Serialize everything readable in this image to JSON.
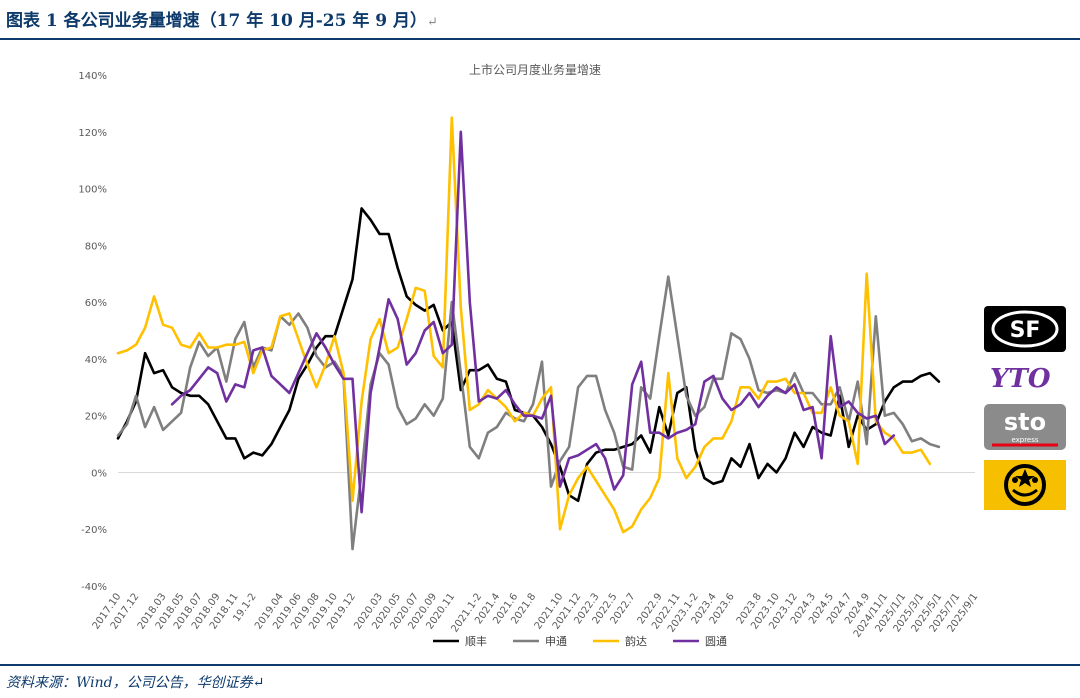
{
  "report_title": "图表 1 各公司业务量增速（17 年 10 月-25 年 9 月）",
  "para_mark": "↵",
  "source": "资料来源：Wind，公司公告，华创证券↵",
  "logos": [
    {
      "name": "sf-express-logo",
      "text": "SF"
    },
    {
      "name": "yto-logo",
      "text": "YTO"
    },
    {
      "name": "sto-logo",
      "text": "sto",
      "subtext": "express"
    },
    {
      "name": "yunda-logo",
      "text": ""
    }
  ],
  "colors": {
    "sf": "#000000",
    "sto": "#7f7f7f",
    "yunda": "#ffc000",
    "yto": "#7030a0",
    "title_blue": "#0d3a6b",
    "axis_text": "#595959",
    "grid": "#d9d9d9"
  },
  "chart_data": {
    "type": "line",
    "title": "上市公司月度业务量增速",
    "xlabel": "",
    "ylabel": "",
    "ylim": [
      -40,
      140
    ],
    "yticks": [
      -40,
      -20,
      0,
      20,
      40,
      60,
      80,
      100,
      120,
      140
    ],
    "ytick_labels": [
      "-40%",
      "-20%",
      "0%",
      "20%",
      "40%",
      "60%",
      "80%",
      "100%",
      "120%",
      "140%"
    ],
    "x_count": 96,
    "x_tick_positions": [
      0,
      2,
      5,
      7,
      9,
      11,
      13,
      15,
      18,
      20,
      22,
      24,
      26,
      29,
      31,
      33,
      35,
      37,
      40,
      42,
      44,
      46,
      49,
      51,
      53,
      55,
      57,
      60,
      62,
      64,
      66,
      68,
      71,
      73,
      75,
      77,
      79,
      81,
      83,
      85,
      87,
      89,
      91,
      93,
      95
    ],
    "x_tick_labels": [
      "2017.10",
      "2017.12",
      "2018.03",
      "2018.05",
      "2018.07",
      "2018.09",
      "2018.11",
      "19.1-2",
      "2019.04",
      "2019.06",
      "2019.08",
      "2019.10",
      "2019.12",
      "2020.03",
      "2020.05",
      "2020.07",
      "2020.09",
      "2020.11",
      "2021.1-2",
      "2021.4",
      "2021.6",
      "2021.8",
      "2021.10",
      "2021.12",
      "2022.3",
      "2022.5",
      "2022.7",
      "2022.9",
      "2022.11",
      "2023.1-2",
      "2023.4",
      "2023.6",
      "2023.8",
      "2023.10",
      "2023.12",
      "2024.3",
      "2024.5",
      "2024.7",
      "2024.9",
      "2024/11/1",
      "2025/1/1",
      "2025/3/1",
      "2025/5/1",
      "2025/7/1",
      "2025/9/1"
    ],
    "legend": [
      "顺丰",
      "申通",
      "韵达",
      "圆通"
    ],
    "legend_position": "bottom",
    "series": [
      {
        "name": "顺丰",
        "color": "#000000",
        "start": 0,
        "values": [
          12,
          18,
          25,
          42,
          35,
          36,
          30,
          28,
          27,
          27,
          24,
          18,
          12,
          12,
          5,
          7,
          6,
          10,
          16,
          22,
          33,
          38,
          44,
          48,
          48,
          58,
          68,
          93,
          89,
          84,
          84,
          72,
          62,
          59,
          57,
          59,
          50,
          53,
          29,
          36,
          36,
          38,
          33,
          32,
          22,
          21,
          20,
          16,
          10,
          2,
          -8,
          -10,
          3,
          7,
          8,
          8,
          9,
          10,
          13,
          7,
          23,
          13,
          28,
          30,
          8,
          -2,
          -4,
          -3,
          5,
          2,
          10,
          -2,
          3,
          0,
          5,
          14,
          9,
          16,
          14,
          13,
          27,
          9,
          20,
          15,
          17,
          25,
          30,
          32,
          32,
          34,
          35,
          32
        ]
      },
      {
        "name": "申通",
        "color": "#7f7f7f",
        "start": 0,
        "values": [
          13,
          17,
          27,
          16,
          23,
          15,
          18,
          21,
          37,
          46,
          41,
          44,
          32,
          47,
          53,
          37,
          44,
          43,
          55,
          52,
          56,
          51,
          41,
          37,
          39,
          34,
          -27,
          0,
          31,
          42,
          38,
          23,
          17,
          19,
          24,
          20,
          26,
          60,
          35,
          9,
          5,
          14,
          16,
          21,
          19,
          18,
          24,
          39,
          -5,
          4,
          9,
          30,
          34,
          34,
          22,
          14,
          2,
          1,
          30,
          26,
          48,
          69,
          48,
          27,
          20,
          23,
          33,
          33,
          49,
          47,
          40,
          29,
          28,
          29,
          28,
          35,
          28,
          28,
          24,
          24,
          30,
          18,
          32,
          10,
          55,
          20,
          21,
          17,
          11,
          12,
          10,
          9
        ]
      },
      {
        "name": "韵达",
        "color": "#ffc000",
        "start": 0,
        "values": [
          42,
          43,
          45,
          51,
          62,
          52,
          51,
          45,
          44,
          49,
          44,
          44,
          45,
          45,
          46,
          35,
          43,
          44,
          55,
          56,
          47,
          38,
          30,
          38,
          48,
          35,
          -10,
          25,
          47,
          54,
          42,
          44,
          54,
          65,
          64,
          41,
          37,
          125,
          58,
          22,
          24,
          29,
          26,
          23,
          18,
          21,
          20,
          26,
          30,
          -20,
          -8,
          -2,
          2,
          -3,
          -8,
          -13,
          -21,
          -19,
          -13,
          -9,
          -2,
          35,
          5,
          -2,
          2,
          9,
          12,
          12,
          18,
          30,
          30,
          26,
          32,
          32,
          33,
          28,
          28,
          21,
          21,
          30,
          20,
          18,
          3,
          70,
          18,
          14,
          12,
          7,
          7,
          8,
          3
        ]
      },
      {
        "name": "圆通",
        "color": "#7030a0",
        "start": 6,
        "values": [
          24,
          27,
          29,
          33,
          37,
          35,
          25,
          31,
          30,
          43,
          44,
          34,
          31,
          28,
          35,
          42,
          49,
          44,
          38,
          33,
          33,
          -14,
          28,
          44,
          61,
          54,
          38,
          42,
          50,
          53,
          42,
          45,
          120,
          60,
          25,
          27,
          26,
          29,
          24,
          20,
          20,
          19,
          27,
          -5,
          5,
          6,
          8,
          10,
          5,
          -6,
          -1,
          31,
          39,
          14,
          14,
          12,
          14,
          15,
          17,
          32,
          34,
          26,
          22,
          24,
          28,
          23,
          27,
          30,
          28,
          31,
          22,
          23,
          5,
          48,
          23,
          25,
          21,
          19,
          20,
          10,
          13
        ]
      }
    ]
  }
}
